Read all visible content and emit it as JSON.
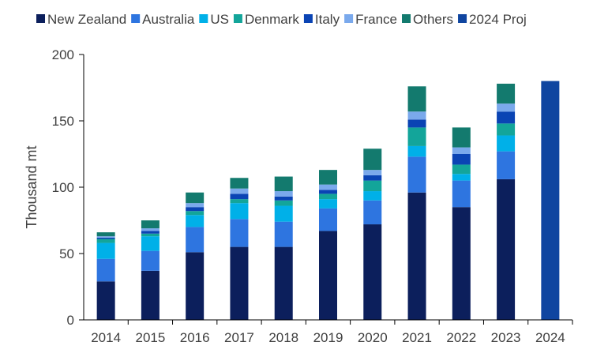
{
  "chart_data": {
    "type": "bar",
    "stacked": true,
    "title": "",
    "xlabel": "",
    "ylabel": "Thousand mt",
    "ylim": [
      0,
      200
    ],
    "yticks": [
      0,
      50,
      100,
      150,
      200
    ],
    "grid": false,
    "legend": "top",
    "categories": [
      "2014",
      "2015",
      "2016",
      "2017",
      "2018",
      "2019",
      "2020",
      "2021",
      "2022",
      "2023",
      "2024"
    ],
    "series": [
      {
        "name": "New Zealand",
        "color": "#0c1f5c",
        "values": [
          29,
          37,
          51,
          55,
          55,
          67,
          72,
          96,
          85,
          106,
          0
        ]
      },
      {
        "name": "Australia",
        "color": "#2e75e0",
        "values": [
          17,
          15,
          19,
          21,
          19,
          17,
          18,
          27,
          20,
          21,
          0
        ]
      },
      {
        "name": "US",
        "color": "#00b0e8",
        "values": [
          12,
          11,
          9,
          12,
          12,
          7,
          7,
          8,
          5,
          12,
          0
        ]
      },
      {
        "name": "Denmark",
        "color": "#13a59a",
        "values": [
          3,
          2,
          3,
          3,
          4,
          4,
          8,
          14,
          7,
          9,
          0
        ]
      },
      {
        "name": "Italy",
        "color": "#0a44b4",
        "values": [
          1,
          2,
          3,
          4,
          3,
          3,
          4,
          6,
          8,
          9,
          0
        ]
      },
      {
        "name": "France",
        "color": "#7aa9ec",
        "values": [
          1,
          2,
          3,
          4,
          4,
          4,
          4,
          6,
          5,
          6,
          0
        ]
      },
      {
        "name": "Others",
        "color": "#137a6e",
        "values": [
          3,
          6,
          8,
          8,
          11,
          11,
          16,
          19,
          15,
          15,
          0
        ]
      },
      {
        "name": "2024 Proj",
        "color": "#0f45a0",
        "values": [
          0,
          0,
          0,
          0,
          0,
          0,
          0,
          0,
          0,
          0,
          180
        ]
      }
    ]
  }
}
